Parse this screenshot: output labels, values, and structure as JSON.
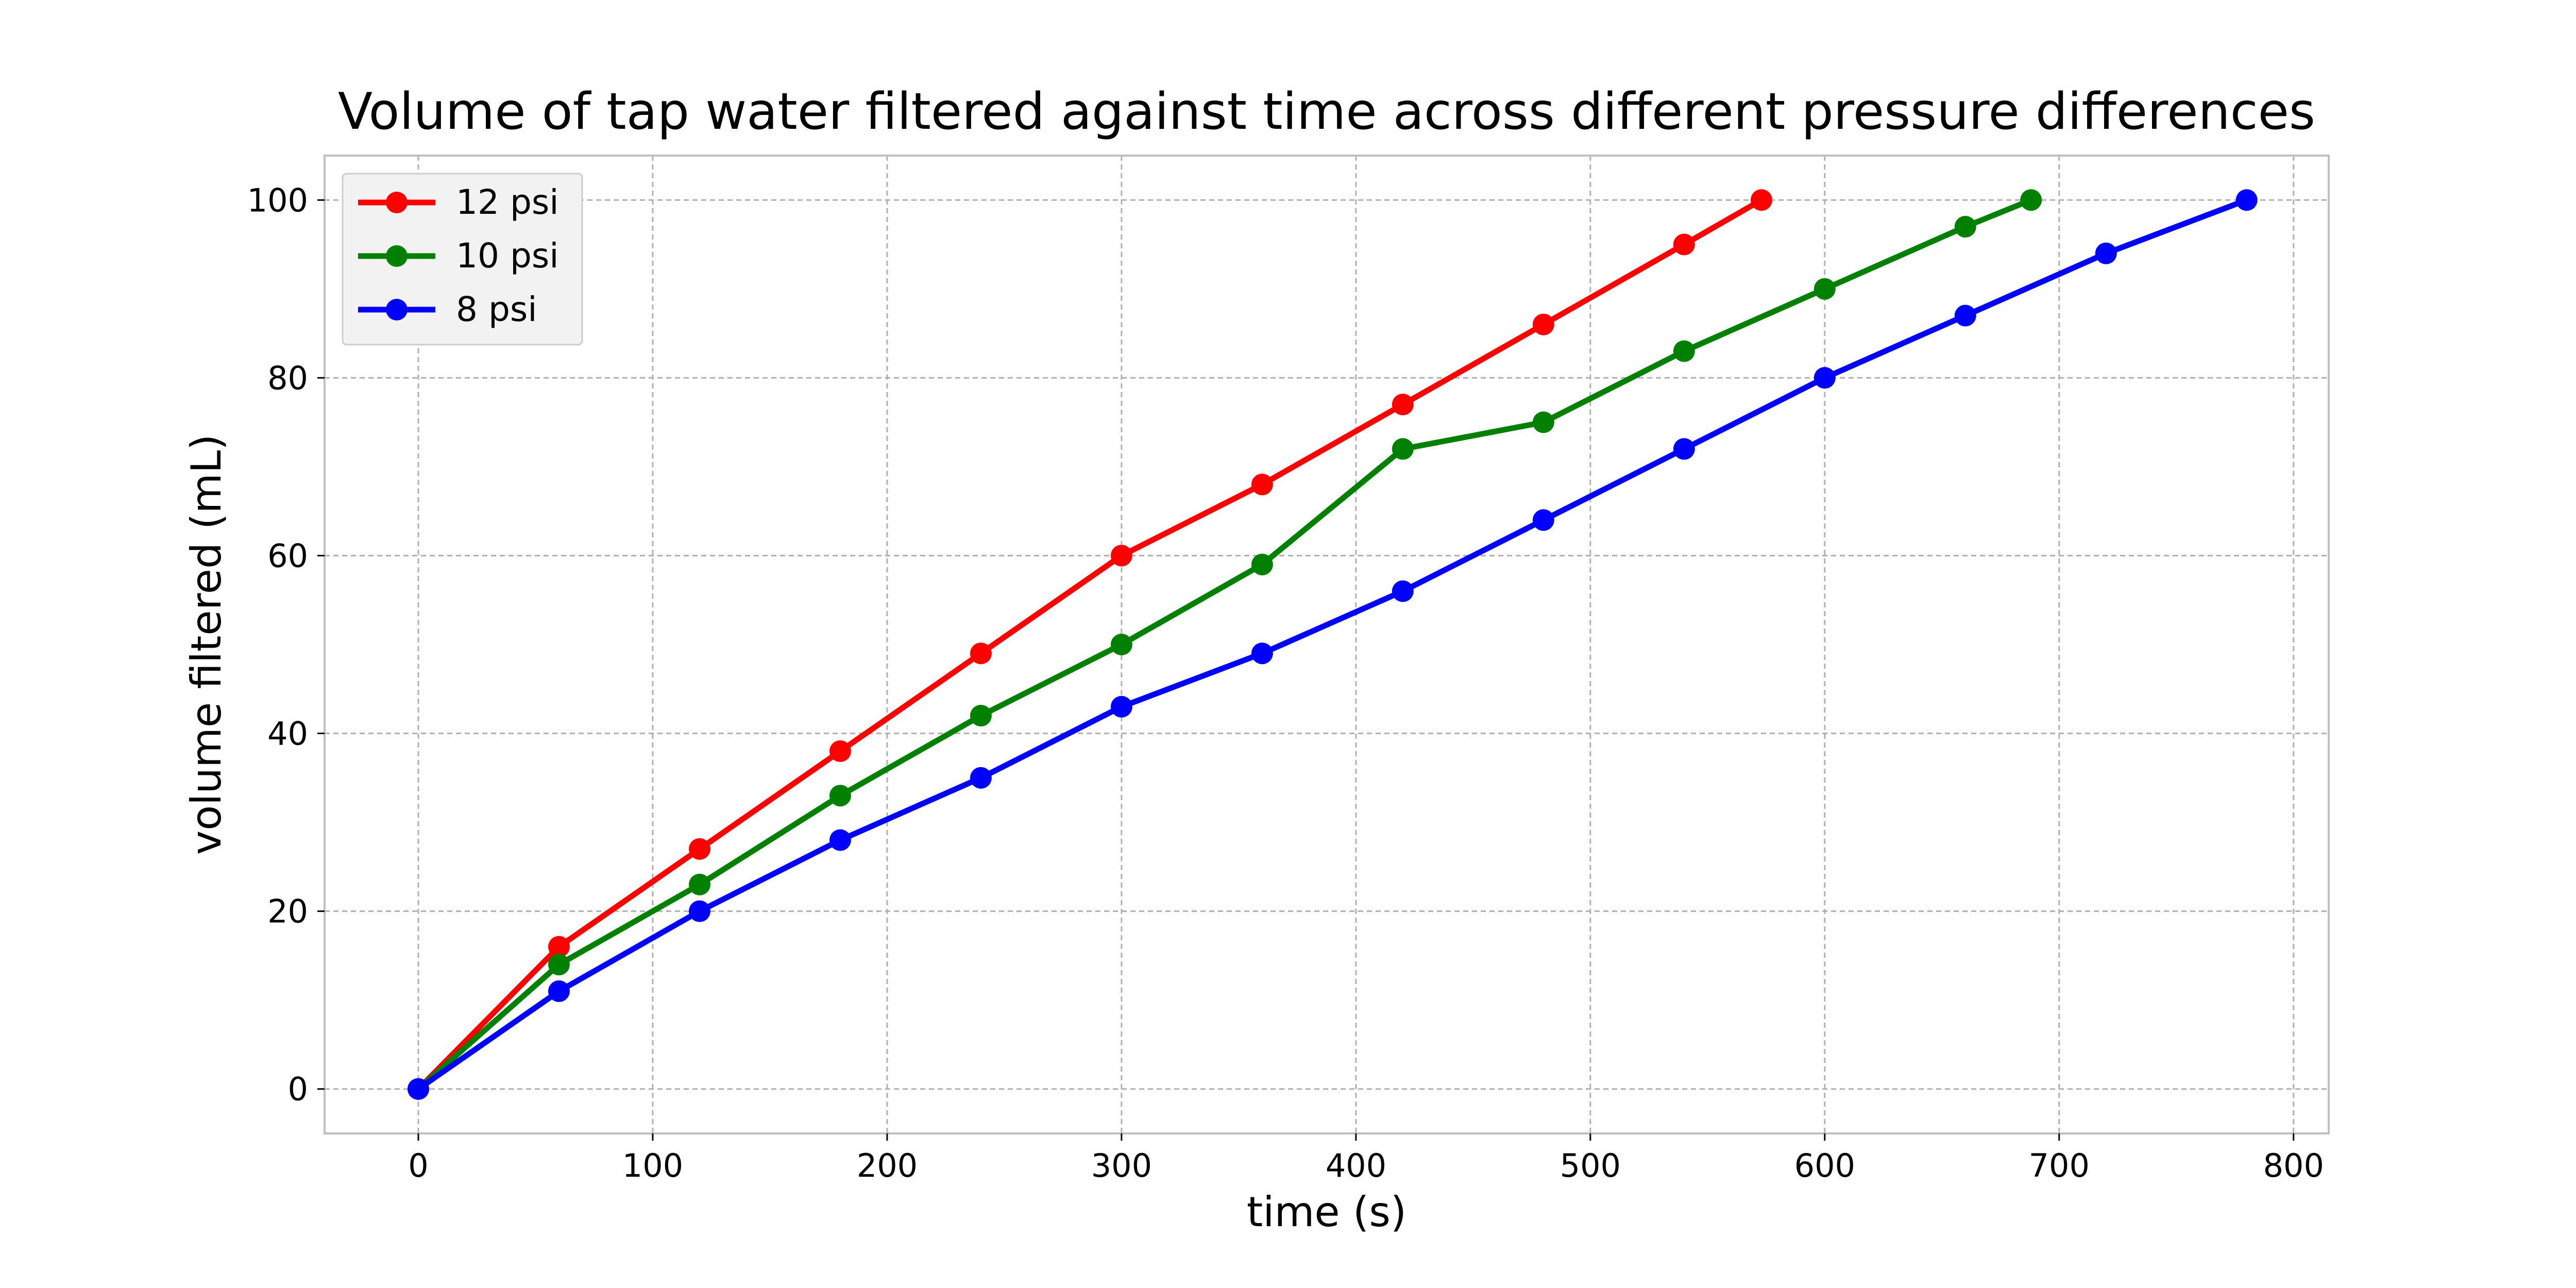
{
  "chart_data": {
    "type": "line",
    "title": "Volume of tap water filtered against time across different pressure differences",
    "xlabel": "time (s)",
    "ylabel": "volume filtered (mL)",
    "xlim": [
      -40,
      815
    ],
    "ylim": [
      -5,
      105
    ],
    "x_ticks": [
      0,
      100,
      200,
      300,
      400,
      500,
      600,
      700,
      800
    ],
    "y_ticks": [
      0,
      20,
      40,
      60,
      80,
      100
    ],
    "grid": true,
    "legend_position": "top-left",
    "series": [
      {
        "name": "12 psi",
        "color": "#ff0000",
        "x": [
          0,
          60,
          120,
          180,
          240,
          300,
          360,
          420,
          480,
          540,
          573
        ],
        "y": [
          0,
          16,
          27,
          38,
          49,
          60,
          68,
          77,
          86,
          95,
          100
        ]
      },
      {
        "name": "10 psi",
        "color": "#008000",
        "x": [
          0,
          60,
          120,
          180,
          240,
          300,
          360,
          420,
          480,
          540,
          600,
          660,
          688
        ],
        "y": [
          0,
          14,
          23,
          33,
          42,
          50,
          59,
          72,
          75,
          83,
          90,
          97,
          100
        ]
      },
      {
        "name": "8 psi",
        "color": "#0000ff",
        "x": [
          0,
          60,
          120,
          180,
          240,
          300,
          360,
          420,
          480,
          540,
          600,
          660,
          720,
          780
        ],
        "y": [
          0,
          11,
          20,
          28,
          35,
          43,
          49,
          56,
          64,
          72,
          80,
          87,
          94,
          100
        ]
      }
    ]
  }
}
